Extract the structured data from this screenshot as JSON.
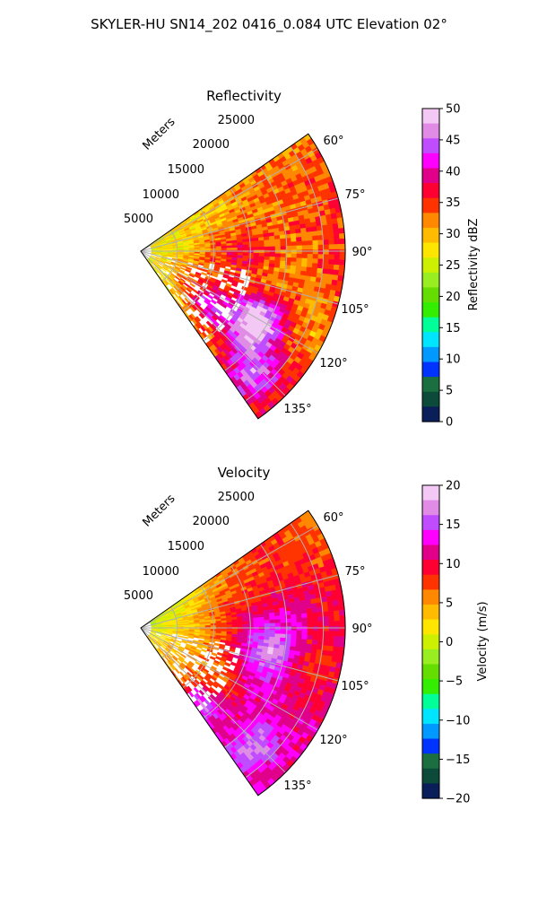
{
  "figure_title": "SKYLER-HU  SN14_202  0416_0.084 UTC Elevation 02°",
  "chart_data": [
    {
      "type": "heatmap",
      "projection": "polar-sector",
      "title": "Reflectivity",
      "range_label": "Meters",
      "range_ticks": [
        "5000",
        "10000",
        "15000",
        "20000",
        "25000"
      ],
      "range_max": 28000,
      "azimuth_ticks": [
        "60°",
        "75°",
        "90°",
        "105°",
        "120°",
        "135°"
      ],
      "azimuth_range": [
        55,
        145
      ],
      "grid": true,
      "colorbar": {
        "label": "Reflectivity dBZ",
        "ticks": [
          "0",
          "5",
          "10",
          "15",
          "20",
          "25",
          "30",
          "35",
          "40",
          "45",
          "50"
        ],
        "min": 0,
        "max": 50
      }
    },
    {
      "type": "heatmap",
      "projection": "polar-sector",
      "title": "Velocity",
      "range_label": "Meters",
      "range_ticks": [
        "5000",
        "10000",
        "15000",
        "20000",
        "25000"
      ],
      "range_max": 28000,
      "azimuth_ticks": [
        "60°",
        "75°",
        "90°",
        "105°",
        "120°",
        "135°"
      ],
      "azimuth_range": [
        55,
        145
      ],
      "grid": true,
      "colorbar": {
        "label": "Velocity (m/s)",
        "ticks": [
          "20",
          "15",
          "10",
          "5",
          "0",
          "−5",
          "−10",
          "−15",
          "−20"
        ],
        "min": -20,
        "max": 20
      }
    }
  ],
  "colormap": [
    "#0a1e5a",
    "#0c4a3a",
    "#1a6e40",
    "#0033ff",
    "#0099ff",
    "#00e5ff",
    "#00ff99",
    "#33ee00",
    "#66dd00",
    "#99ee22",
    "#ccf000",
    "#ffe600",
    "#ffbb00",
    "#ff8800",
    "#ff3300",
    "#ff0033",
    "#e0008a",
    "#ff00ff",
    "#c04cff",
    "#e08ce6",
    "#f4c8f4"
  ]
}
